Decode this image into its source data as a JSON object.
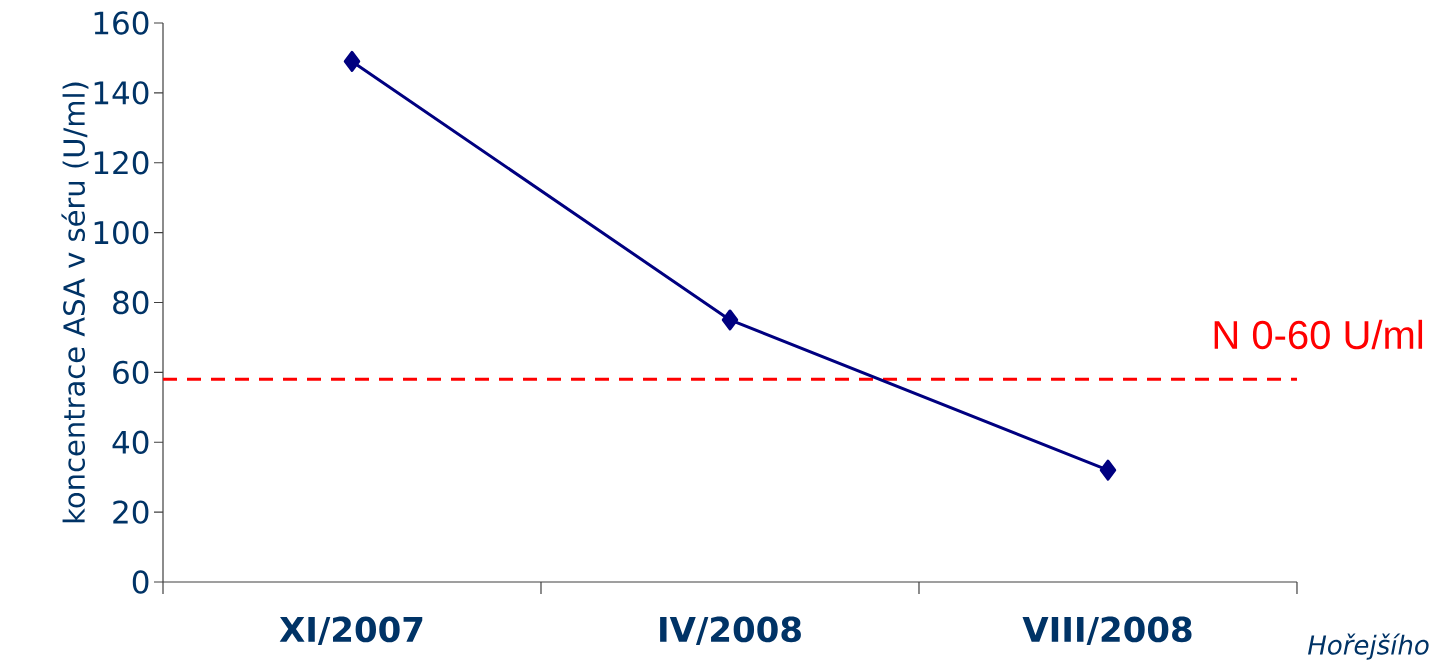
{
  "chart_data": {
    "type": "line",
    "ylabel": "koncentrace ASA v séru (U/ml)",
    "categories": [
      "XI/2007",
      "IV/2008",
      "VIII/2008"
    ],
    "series": [
      {
        "color": "#000080",
        "values": [
          149,
          75,
          32
        ]
      }
    ],
    "ylim": [
      0,
      160
    ],
    "yticks": [
      0,
      20,
      40,
      60,
      80,
      100,
      120,
      140,
      160
    ],
    "marker": "diamond",
    "line_style": "solid",
    "grid": false,
    "ref_lines": [
      {
        "axis": "y",
        "value": 58,
        "label": "N 0-60 U/ml",
        "color": "#ff0000",
        "line_style": "dashed"
      }
    ],
    "annotations": [
      "Hořejšího"
    ]
  }
}
